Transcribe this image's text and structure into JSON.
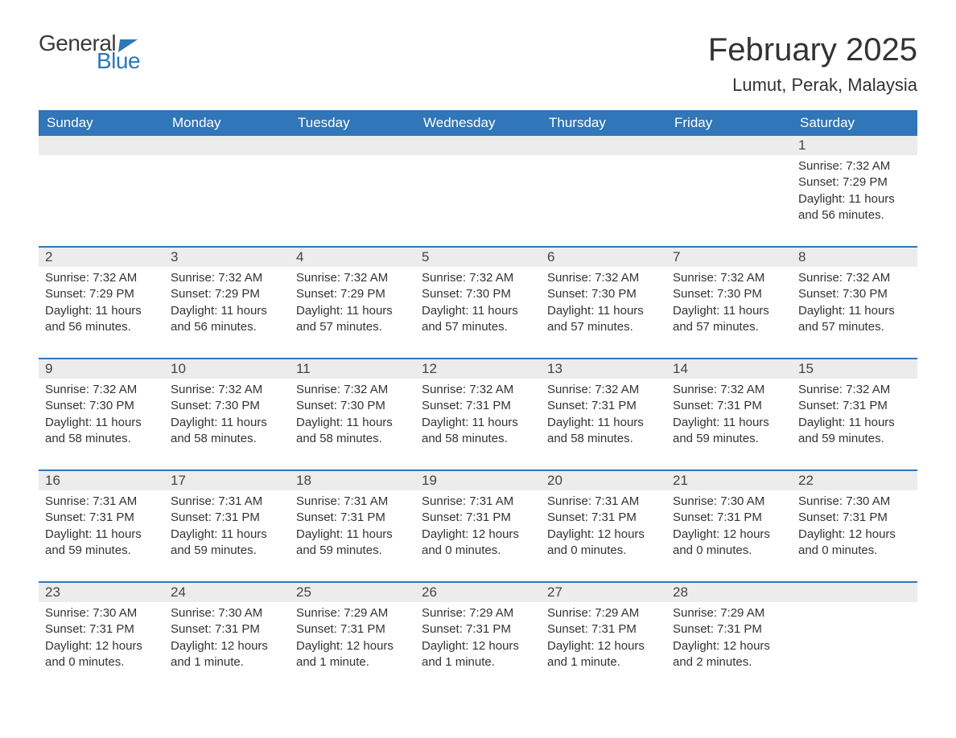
{
  "logo": {
    "word1": "General",
    "word2": "Blue",
    "word1_color": "#3a3a3a",
    "word2_color": "#2e77b8",
    "triangle_color": "#2e77b8"
  },
  "header": {
    "month_title": "February 2025",
    "location": "Lumut, Perak, Malaysia"
  },
  "colors": {
    "header_bg": "#3076b8",
    "header_text": "#ffffff",
    "daynum_bg": "#ececec",
    "row_border": "#3076b8",
    "body_text": "#333333",
    "page_bg": "#ffffff"
  },
  "typography": {
    "title_fontsize": 40,
    "location_fontsize": 22,
    "dayheader_fontsize": 17,
    "daynum_fontsize": 17,
    "body_fontsize": 15
  },
  "day_headers": [
    "Sunday",
    "Monday",
    "Tuesday",
    "Wednesday",
    "Thursday",
    "Friday",
    "Saturday"
  ],
  "weeks": [
    [
      null,
      null,
      null,
      null,
      null,
      null,
      {
        "n": "1",
        "sunrise": "Sunrise: 7:32 AM",
        "sunset": "Sunset: 7:29 PM",
        "day1": "Daylight: 11 hours",
        "day2": "and 56 minutes."
      }
    ],
    [
      {
        "n": "2",
        "sunrise": "Sunrise: 7:32 AM",
        "sunset": "Sunset: 7:29 PM",
        "day1": "Daylight: 11 hours",
        "day2": "and 56 minutes."
      },
      {
        "n": "3",
        "sunrise": "Sunrise: 7:32 AM",
        "sunset": "Sunset: 7:29 PM",
        "day1": "Daylight: 11 hours",
        "day2": "and 56 minutes."
      },
      {
        "n": "4",
        "sunrise": "Sunrise: 7:32 AM",
        "sunset": "Sunset: 7:29 PM",
        "day1": "Daylight: 11 hours",
        "day2": "and 57 minutes."
      },
      {
        "n": "5",
        "sunrise": "Sunrise: 7:32 AM",
        "sunset": "Sunset: 7:30 PM",
        "day1": "Daylight: 11 hours",
        "day2": "and 57 minutes."
      },
      {
        "n": "6",
        "sunrise": "Sunrise: 7:32 AM",
        "sunset": "Sunset: 7:30 PM",
        "day1": "Daylight: 11 hours",
        "day2": "and 57 minutes."
      },
      {
        "n": "7",
        "sunrise": "Sunrise: 7:32 AM",
        "sunset": "Sunset: 7:30 PM",
        "day1": "Daylight: 11 hours",
        "day2": "and 57 minutes."
      },
      {
        "n": "8",
        "sunrise": "Sunrise: 7:32 AM",
        "sunset": "Sunset: 7:30 PM",
        "day1": "Daylight: 11 hours",
        "day2": "and 57 minutes."
      }
    ],
    [
      {
        "n": "9",
        "sunrise": "Sunrise: 7:32 AM",
        "sunset": "Sunset: 7:30 PM",
        "day1": "Daylight: 11 hours",
        "day2": "and 58 minutes."
      },
      {
        "n": "10",
        "sunrise": "Sunrise: 7:32 AM",
        "sunset": "Sunset: 7:30 PM",
        "day1": "Daylight: 11 hours",
        "day2": "and 58 minutes."
      },
      {
        "n": "11",
        "sunrise": "Sunrise: 7:32 AM",
        "sunset": "Sunset: 7:30 PM",
        "day1": "Daylight: 11 hours",
        "day2": "and 58 minutes."
      },
      {
        "n": "12",
        "sunrise": "Sunrise: 7:32 AM",
        "sunset": "Sunset: 7:31 PM",
        "day1": "Daylight: 11 hours",
        "day2": "and 58 minutes."
      },
      {
        "n": "13",
        "sunrise": "Sunrise: 7:32 AM",
        "sunset": "Sunset: 7:31 PM",
        "day1": "Daylight: 11 hours",
        "day2": "and 58 minutes."
      },
      {
        "n": "14",
        "sunrise": "Sunrise: 7:32 AM",
        "sunset": "Sunset: 7:31 PM",
        "day1": "Daylight: 11 hours",
        "day2": "and 59 minutes."
      },
      {
        "n": "15",
        "sunrise": "Sunrise: 7:32 AM",
        "sunset": "Sunset: 7:31 PM",
        "day1": "Daylight: 11 hours",
        "day2": "and 59 minutes."
      }
    ],
    [
      {
        "n": "16",
        "sunrise": "Sunrise: 7:31 AM",
        "sunset": "Sunset: 7:31 PM",
        "day1": "Daylight: 11 hours",
        "day2": "and 59 minutes."
      },
      {
        "n": "17",
        "sunrise": "Sunrise: 7:31 AM",
        "sunset": "Sunset: 7:31 PM",
        "day1": "Daylight: 11 hours",
        "day2": "and 59 minutes."
      },
      {
        "n": "18",
        "sunrise": "Sunrise: 7:31 AM",
        "sunset": "Sunset: 7:31 PM",
        "day1": "Daylight: 11 hours",
        "day2": "and 59 minutes."
      },
      {
        "n": "19",
        "sunrise": "Sunrise: 7:31 AM",
        "sunset": "Sunset: 7:31 PM",
        "day1": "Daylight: 12 hours",
        "day2": "and 0 minutes."
      },
      {
        "n": "20",
        "sunrise": "Sunrise: 7:31 AM",
        "sunset": "Sunset: 7:31 PM",
        "day1": "Daylight: 12 hours",
        "day2": "and 0 minutes."
      },
      {
        "n": "21",
        "sunrise": "Sunrise: 7:30 AM",
        "sunset": "Sunset: 7:31 PM",
        "day1": "Daylight: 12 hours",
        "day2": "and 0 minutes."
      },
      {
        "n": "22",
        "sunrise": "Sunrise: 7:30 AM",
        "sunset": "Sunset: 7:31 PM",
        "day1": "Daylight: 12 hours",
        "day2": "and 0 minutes."
      }
    ],
    [
      {
        "n": "23",
        "sunrise": "Sunrise: 7:30 AM",
        "sunset": "Sunset: 7:31 PM",
        "day1": "Daylight: 12 hours",
        "day2": "and 0 minutes."
      },
      {
        "n": "24",
        "sunrise": "Sunrise: 7:30 AM",
        "sunset": "Sunset: 7:31 PM",
        "day1": "Daylight: 12 hours",
        "day2": "and 1 minute."
      },
      {
        "n": "25",
        "sunrise": "Sunrise: 7:29 AM",
        "sunset": "Sunset: 7:31 PM",
        "day1": "Daylight: 12 hours",
        "day2": "and 1 minute."
      },
      {
        "n": "26",
        "sunrise": "Sunrise: 7:29 AM",
        "sunset": "Sunset: 7:31 PM",
        "day1": "Daylight: 12 hours",
        "day2": "and 1 minute."
      },
      {
        "n": "27",
        "sunrise": "Sunrise: 7:29 AM",
        "sunset": "Sunset: 7:31 PM",
        "day1": "Daylight: 12 hours",
        "day2": "and 1 minute."
      },
      {
        "n": "28",
        "sunrise": "Sunrise: 7:29 AM",
        "sunset": "Sunset: 7:31 PM",
        "day1": "Daylight: 12 hours",
        "day2": "and 2 minutes."
      },
      null
    ]
  ]
}
